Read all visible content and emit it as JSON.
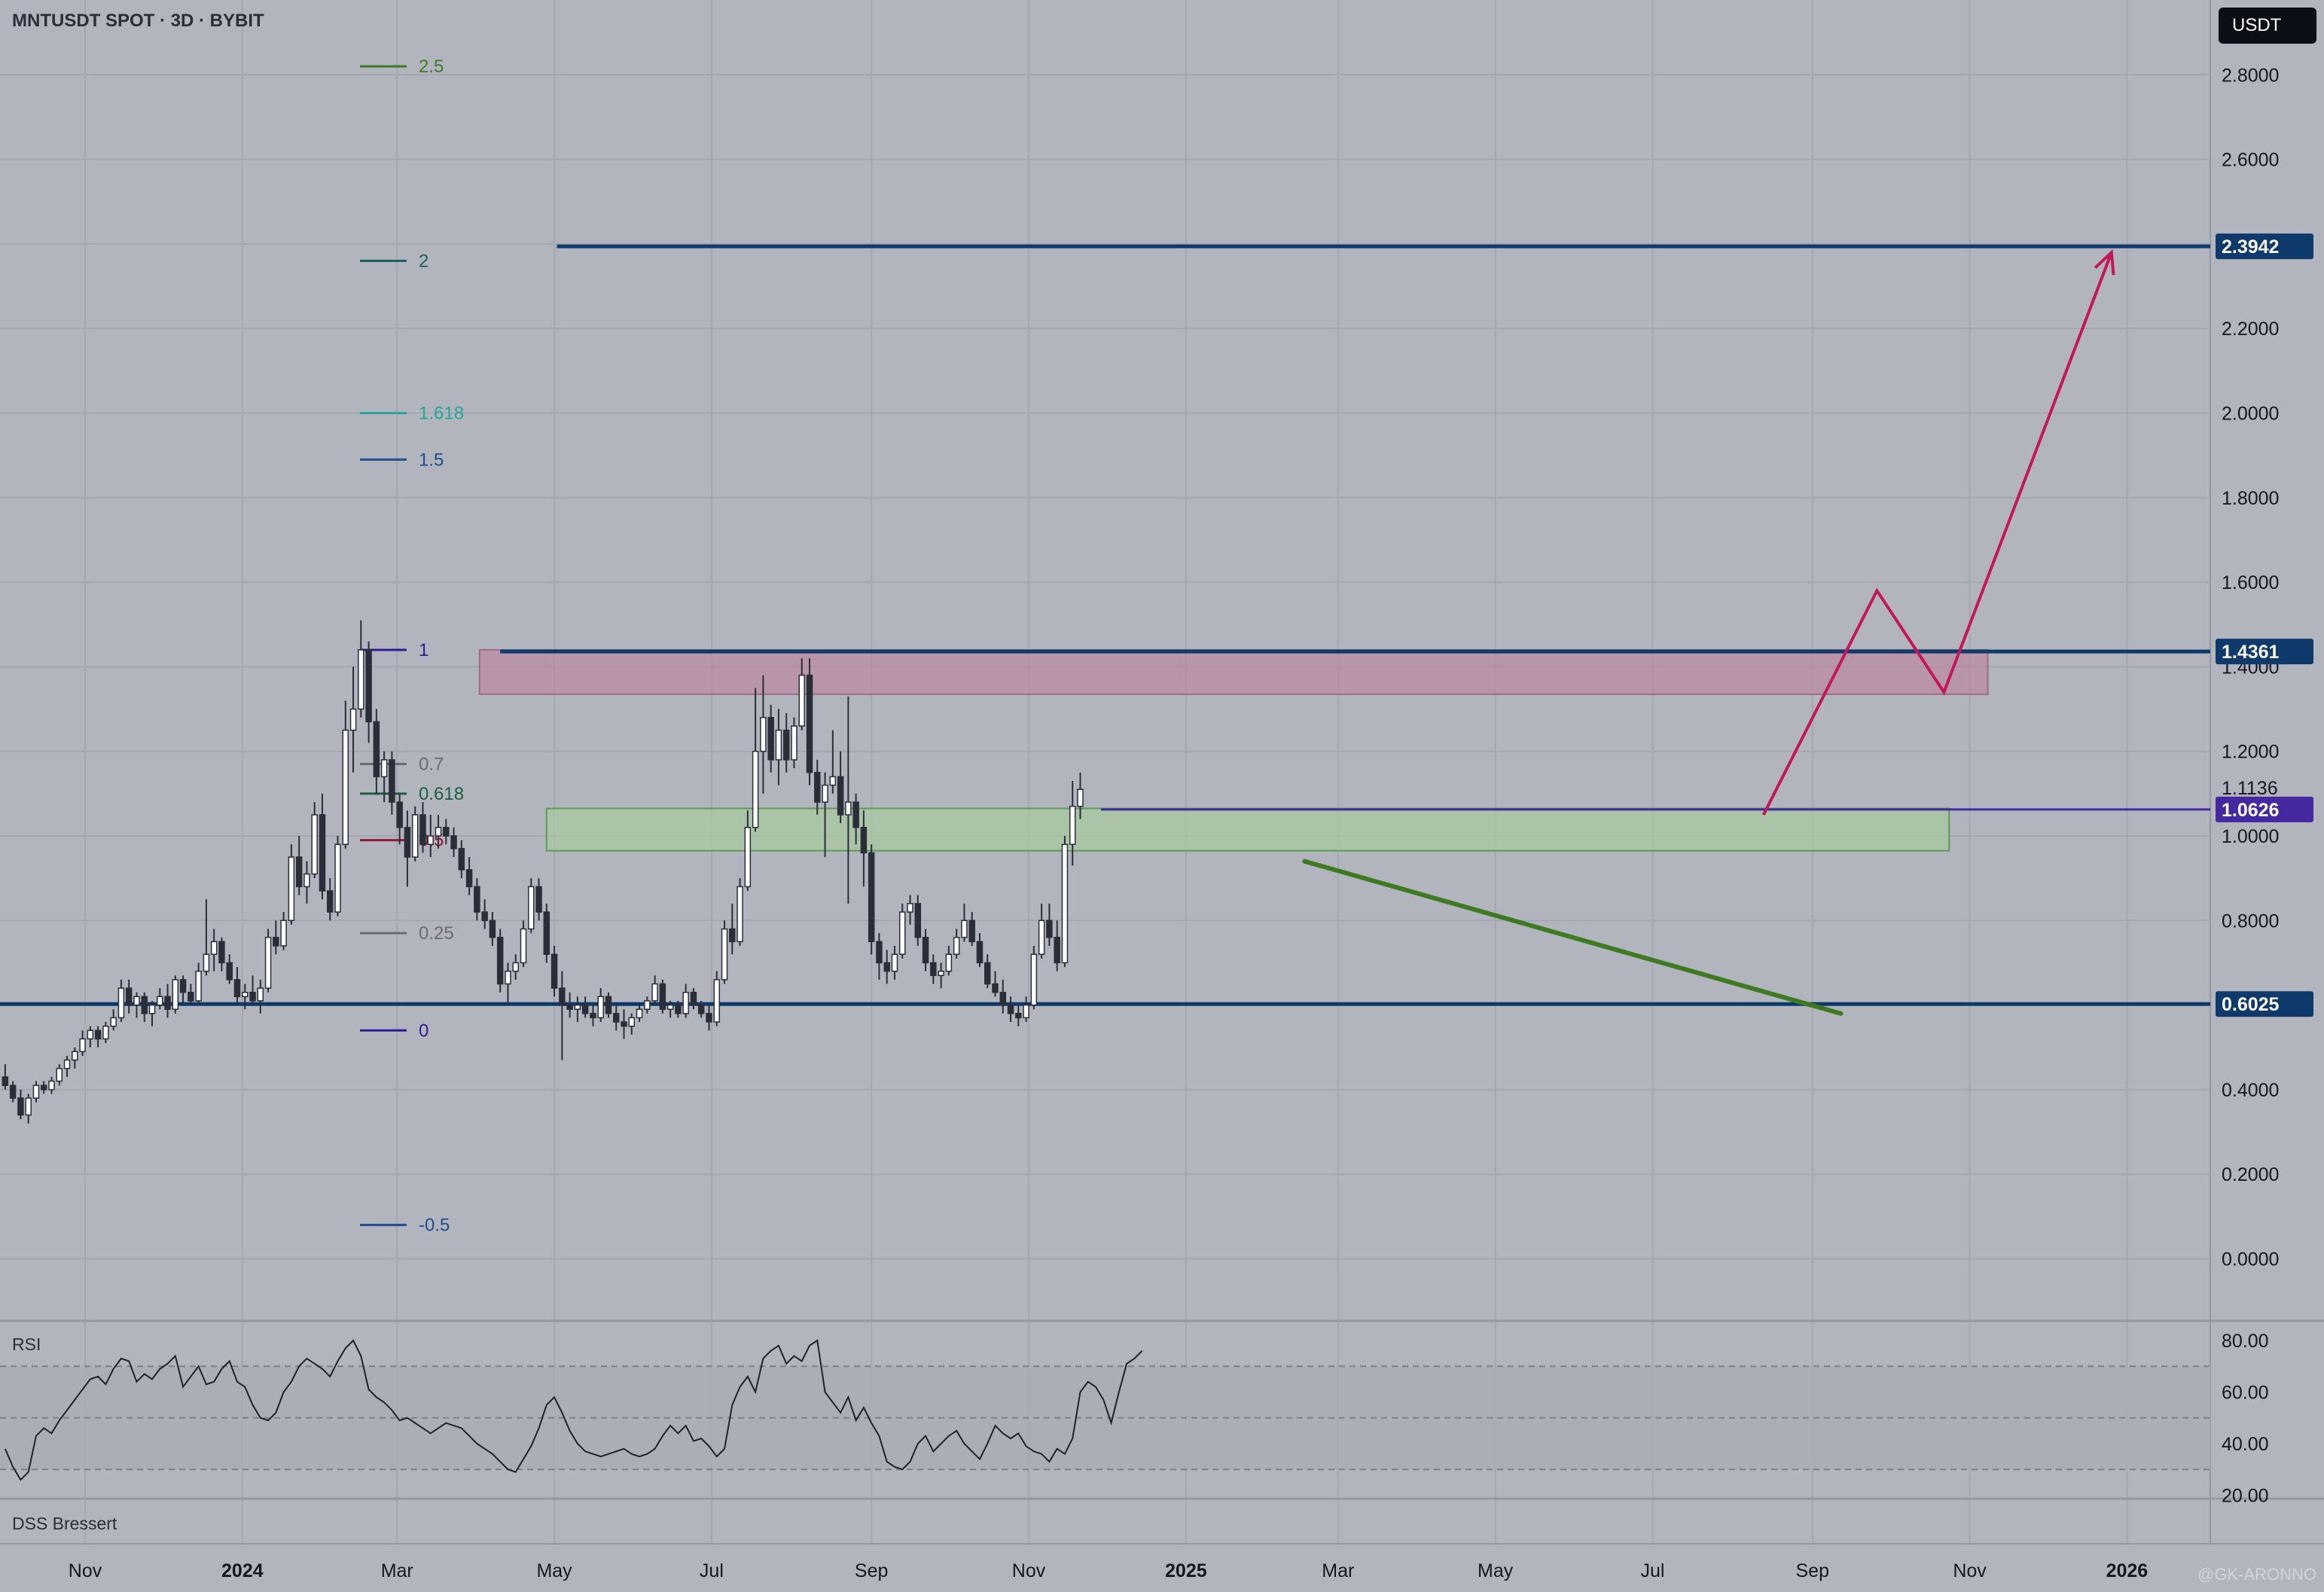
{
  "header": {
    "title": "MNTUSDT SPOT · 3D · BYBIT"
  },
  "currency_button": {
    "label": "USDT"
  },
  "rsi_pane": {
    "label": "RSI"
  },
  "dss_pane": {
    "label": "DSS Bressert"
  },
  "watermark": {
    "text": "@GK-ARONNO"
  },
  "colors": {
    "background": "#b2b5be",
    "grid": "#a3a7b1",
    "candle_up": "#ffffff",
    "candle_down": "#2a2e39",
    "horizontal_level": "#0d3a6b",
    "projection": "#c2185b",
    "trendline": "#3d7a22",
    "resistance_zone": "#b98ba2",
    "support_zone": "#a8c9a0",
    "rsi_line": "#1e222d",
    "mid_level": "#4527a0"
  },
  "chart_data": [
    {
      "type": "candlestick",
      "title": "MNTUSDT SPOT · 3D · BYBIT",
      "x_tick_labels": [
        "Nov",
        "2024",
        "Mar",
        "May",
        "Jul",
        "Sep",
        "Nov",
        "2025",
        "Mar",
        "May",
        "Jul",
        "Sep",
        "Nov",
        "2026"
      ],
      "y_tick_labels": [
        "2.8000",
        "2.6000",
        "2.4000",
        "2.2000",
        "2.0000",
        "1.8000",
        "1.6000",
        "1.4000",
        "1.2000",
        "1.0000",
        "0.8000",
        "0.6000",
        "0.4000",
        "0.2000",
        "0.0000"
      ],
      "ylim": [
        -0.14,
        2.94
      ],
      "grid": true,
      "price_labels": [
        {
          "value": 2.3942,
          "label": "2.3942",
          "color": "#0d3a6b"
        },
        {
          "value": 1.4361,
          "label": "1.4361",
          "color": "#0d3a6b"
        },
        {
          "value": 1.1136,
          "label": "1.1136",
          "color": "none"
        },
        {
          "value": 1.0626,
          "label": "1.0626",
          "color": "#4527a0"
        },
        {
          "value": 0.6025,
          "label": "0.6025",
          "color": "#0d3a6b"
        }
      ],
      "fib_levels": [
        {
          "level": "2.5",
          "price": 2.82,
          "color": "#3d7a22"
        },
        {
          "level": "2",
          "price": 2.36,
          "color": "#1b5e5e"
        },
        {
          "level": "1.618",
          "price": 2.0,
          "color": "#26a69a"
        },
        {
          "level": "1.5",
          "price": 1.89,
          "color": "#1e4f8c"
        },
        {
          "level": "1",
          "price": 1.44,
          "color": "#311b92"
        },
        {
          "level": "0.7",
          "price": 1.17,
          "color": "#6b6b75"
        },
        {
          "level": "0.618",
          "price": 1.1,
          "color": "#1b5e40"
        },
        {
          "level": "0.5",
          "price": 0.99,
          "color": "#8e1b3b"
        },
        {
          "level": "0.25",
          "price": 0.77,
          "color": "#6b6b75"
        },
        {
          "level": "0",
          "price": 0.54,
          "color": "#311b92"
        },
        {
          "level": "-0.5",
          "price": 0.08,
          "color": "#1e4f8c"
        }
      ],
      "zones": [
        {
          "name": "resistance",
          "from": "2024-04-02",
          "to": "2025-11-08",
          "low": 1.335,
          "high": 1.44
        },
        {
          "name": "support",
          "from": "2024-04-28",
          "to": "2025-10-24",
          "low": 0.965,
          "high": 1.065
        }
      ],
      "horizontal_lines": [
        {
          "price": 2.3942,
          "from": "2024-05-02"
        },
        {
          "price": 1.4361,
          "from": "2024-04-10"
        },
        {
          "price": 1.0626,
          "from": "2024-11-29"
        },
        {
          "price": 0.6025,
          "from": "2023-09-20"
        }
      ],
      "trendline": {
        "from": {
          "date": "2025-02-16",
          "price": 0.94
        },
        "to": {
          "date": "2025-09-12",
          "price": 0.58
        }
      },
      "projection_path": [
        {
          "date": "2025-08-13",
          "price": 1.05
        },
        {
          "date": "2025-09-26",
          "price": 1.58
        },
        {
          "date": "2025-10-22",
          "price": 1.34
        },
        {
          "date": "2025-12-26",
          "price": 2.38
        }
      ],
      "candles": [
        [
          0.43,
          0.46,
          0.4,
          0.41
        ],
        [
          0.41,
          0.42,
          0.37,
          0.38
        ],
        [
          0.38,
          0.4,
          0.33,
          0.34
        ],
        [
          0.34,
          0.39,
          0.32,
          0.38
        ],
        [
          0.38,
          0.42,
          0.37,
          0.41
        ],
        [
          0.41,
          0.42,
          0.39,
          0.4
        ],
        [
          0.4,
          0.43,
          0.39,
          0.42
        ],
        [
          0.42,
          0.46,
          0.41,
          0.45
        ],
        [
          0.45,
          0.48,
          0.43,
          0.47
        ],
        [
          0.47,
          0.5,
          0.45,
          0.49
        ],
        [
          0.49,
          0.54,
          0.48,
          0.52
        ],
        [
          0.52,
          0.55,
          0.5,
          0.54
        ],
        [
          0.54,
          0.55,
          0.5,
          0.52
        ],
        [
          0.52,
          0.56,
          0.51,
          0.55
        ],
        [
          0.55,
          0.59,
          0.54,
          0.57
        ],
        [
          0.57,
          0.66,
          0.56,
          0.64
        ],
        [
          0.64,
          0.66,
          0.58,
          0.6
        ],
        [
          0.6,
          0.63,
          0.57,
          0.62
        ],
        [
          0.62,
          0.63,
          0.56,
          0.58
        ],
        [
          0.58,
          0.61,
          0.55,
          0.6
        ],
        [
          0.6,
          0.64,
          0.59,
          0.62
        ],
        [
          0.62,
          0.65,
          0.57,
          0.59
        ],
        [
          0.59,
          0.67,
          0.58,
          0.66
        ],
        [
          0.66,
          0.67,
          0.6,
          0.63
        ],
        [
          0.63,
          0.65,
          0.6,
          0.61
        ],
        [
          0.61,
          0.7,
          0.6,
          0.68
        ],
        [
          0.68,
          0.85,
          0.67,
          0.72
        ],
        [
          0.72,
          0.78,
          0.68,
          0.75
        ],
        [
          0.75,
          0.76,
          0.68,
          0.7
        ],
        [
          0.7,
          0.72,
          0.65,
          0.66
        ],
        [
          0.66,
          0.69,
          0.6,
          0.62
        ],
        [
          0.62,
          0.65,
          0.59,
          0.63
        ],
        [
          0.63,
          0.67,
          0.6,
          0.61
        ],
        [
          0.61,
          0.66,
          0.58,
          0.64
        ],
        [
          0.64,
          0.78,
          0.63,
          0.76
        ],
        [
          0.76,
          0.8,
          0.72,
          0.74
        ],
        [
          0.74,
          0.82,
          0.73,
          0.8
        ],
        [
          0.8,
          0.98,
          0.79,
          0.95
        ],
        [
          0.95,
          1.0,
          0.86,
          0.88
        ],
        [
          0.88,
          0.94,
          0.84,
          0.91
        ],
        [
          0.91,
          1.08,
          0.9,
          1.05
        ],
        [
          1.05,
          1.1,
          0.85,
          0.87
        ],
        [
          0.87,
          0.9,
          0.8,
          0.82
        ],
        [
          0.82,
          1.0,
          0.81,
          0.98
        ],
        [
          0.98,
          1.32,
          0.97,
          1.25
        ],
        [
          1.25,
          1.4,
          1.15,
          1.3
        ],
        [
          1.3,
          1.51,
          1.28,
          1.44
        ],
        [
          1.44,
          1.46,
          1.22,
          1.27
        ],
        [
          1.27,
          1.3,
          1.1,
          1.14
        ],
        [
          1.14,
          1.2,
          1.08,
          1.18
        ],
        [
          1.18,
          1.2,
          1.05,
          1.08
        ],
        [
          1.08,
          1.1,
          0.98,
          1.02
        ],
        [
          1.02,
          1.06,
          0.88,
          0.95
        ],
        [
          0.95,
          1.07,
          0.94,
          1.05
        ],
        [
          1.05,
          1.08,
          0.96,
          0.98
        ],
        [
          0.98,
          1.05,
          0.95,
          1.0
        ],
        [
          1.0,
          1.05,
          0.97,
          1.02
        ],
        [
          1.02,
          1.04,
          0.98,
          1.0
        ],
        [
          1.0,
          1.02,
          0.95,
          0.97
        ],
        [
          0.97,
          0.99,
          0.9,
          0.92
        ],
        [
          0.92,
          0.95,
          0.86,
          0.88
        ],
        [
          0.88,
          0.9,
          0.8,
          0.82
        ],
        [
          0.82,
          0.85,
          0.78,
          0.8
        ],
        [
          0.8,
          0.82,
          0.74,
          0.76
        ],
        [
          0.76,
          0.78,
          0.63,
          0.65
        ],
        [
          0.65,
          0.7,
          0.6,
          0.68
        ],
        [
          0.68,
          0.72,
          0.66,
          0.7
        ],
        [
          0.7,
          0.8,
          0.69,
          0.78
        ],
        [
          0.78,
          0.9,
          0.77,
          0.88
        ],
        [
          0.88,
          0.9,
          0.8,
          0.82
        ],
        [
          0.82,
          0.84,
          0.7,
          0.72
        ],
        [
          0.72,
          0.74,
          0.62,
          0.64
        ],
        [
          0.64,
          0.68,
          0.47,
          0.6
        ],
        [
          0.6,
          0.63,
          0.57,
          0.59
        ],
        [
          0.59,
          0.62,
          0.56,
          0.6
        ],
        [
          0.6,
          0.62,
          0.57,
          0.58
        ],
        [
          0.58,
          0.6,
          0.55,
          0.57
        ],
        [
          0.57,
          0.64,
          0.56,
          0.62
        ],
        [
          0.62,
          0.63,
          0.57,
          0.58
        ],
        [
          0.58,
          0.6,
          0.54,
          0.56
        ],
        [
          0.56,
          0.59,
          0.52,
          0.55
        ],
        [
          0.55,
          0.58,
          0.53,
          0.57
        ],
        [
          0.57,
          0.6,
          0.56,
          0.59
        ],
        [
          0.59,
          0.62,
          0.58,
          0.61
        ],
        [
          0.61,
          0.67,
          0.6,
          0.65
        ],
        [
          0.65,
          0.66,
          0.58,
          0.59
        ],
        [
          0.59,
          0.61,
          0.57,
          0.6
        ],
        [
          0.6,
          0.61,
          0.57,
          0.58
        ],
        [
          0.58,
          0.65,
          0.57,
          0.63
        ],
        [
          0.63,
          0.64,
          0.59,
          0.6
        ],
        [
          0.6,
          0.61,
          0.57,
          0.58
        ],
        [
          0.58,
          0.6,
          0.54,
          0.56
        ],
        [
          0.56,
          0.68,
          0.55,
          0.66
        ],
        [
          0.66,
          0.8,
          0.65,
          0.78
        ],
        [
          0.78,
          0.84,
          0.72,
          0.75
        ],
        [
          0.75,
          0.9,
          0.74,
          0.88
        ],
        [
          0.88,
          1.06,
          0.87,
          1.02
        ],
        [
          1.02,
          1.35,
          1.01,
          1.2
        ],
        [
          1.2,
          1.38,
          1.1,
          1.28
        ],
        [
          1.28,
          1.31,
          1.15,
          1.18
        ],
        [
          1.18,
          1.3,
          1.12,
          1.25
        ],
        [
          1.25,
          1.29,
          1.15,
          1.18
        ],
        [
          1.18,
          1.28,
          1.16,
          1.26
        ],
        [
          1.26,
          1.42,
          1.25,
          1.38
        ],
        [
          1.38,
          1.42,
          1.12,
          1.15
        ],
        [
          1.15,
          1.18,
          1.05,
          1.08
        ],
        [
          1.08,
          1.15,
          0.95,
          1.12
        ],
        [
          1.12,
          1.25,
          1.1,
          1.14
        ],
        [
          1.14,
          1.2,
          1.03,
          1.05
        ],
        [
          1.05,
          1.33,
          0.84,
          1.08
        ],
        [
          1.08,
          1.1,
          0.98,
          1.02
        ],
        [
          1.02,
          1.06,
          0.88,
          0.96
        ],
        [
          0.96,
          0.98,
          0.72,
          0.75
        ],
        [
          0.75,
          0.77,
          0.66,
          0.7
        ],
        [
          0.7,
          0.73,
          0.65,
          0.68
        ],
        [
          0.68,
          0.74,
          0.66,
          0.72
        ],
        [
          0.72,
          0.84,
          0.71,
          0.82
        ],
        [
          0.82,
          0.86,
          0.79,
          0.84
        ],
        [
          0.84,
          0.86,
          0.74,
          0.76
        ],
        [
          0.76,
          0.78,
          0.68,
          0.7
        ],
        [
          0.7,
          0.72,
          0.65,
          0.67
        ],
        [
          0.67,
          0.7,
          0.64,
          0.68
        ],
        [
          0.68,
          0.74,
          0.67,
          0.72
        ],
        [
          0.72,
          0.78,
          0.71,
          0.76
        ],
        [
          0.76,
          0.84,
          0.75,
          0.8
        ],
        [
          0.8,
          0.82,
          0.74,
          0.75
        ],
        [
          0.75,
          0.77,
          0.69,
          0.7
        ],
        [
          0.7,
          0.72,
          0.64,
          0.65
        ],
        [
          0.65,
          0.68,
          0.62,
          0.63
        ],
        [
          0.63,
          0.66,
          0.58,
          0.6
        ],
        [
          0.6,
          0.62,
          0.56,
          0.58
        ],
        [
          0.58,
          0.6,
          0.55,
          0.57
        ],
        [
          0.57,
          0.62,
          0.56,
          0.6
        ],
        [
          0.6,
          0.74,
          0.59,
          0.72
        ],
        [
          0.72,
          0.84,
          0.71,
          0.8
        ],
        [
          0.8,
          0.84,
          0.74,
          0.76
        ],
        [
          0.76,
          0.8,
          0.68,
          0.7
        ],
        [
          0.7,
          1.0,
          0.69,
          0.98
        ],
        [
          0.98,
          1.13,
          0.93,
          1.07
        ],
        [
          1.07,
          1.15,
          1.04,
          1.11
        ]
      ],
      "candles_note": "",
      "candle_dates": {
        "first": "2023-10-01",
        "step_days": 3
      }
    },
    {
      "type": "line",
      "title": "RSI",
      "y_tick_labels": [
        "80.00",
        "60.00",
        "40.00",
        "20.00"
      ],
      "ylim": [
        18,
        84
      ],
      "band": [
        30,
        70
      ],
      "values": [
        38,
        31,
        26,
        29,
        43,
        46,
        44,
        49,
        53,
        57,
        61,
        65,
        66,
        63,
        69,
        73,
        72,
        64,
        67,
        65,
        69,
        71,
        74,
        62,
        66,
        70,
        63,
        64,
        69,
        72,
        64,
        62,
        55,
        50,
        49,
        52,
        60,
        64,
        70,
        73,
        71,
        69,
        66,
        72,
        77,
        80,
        74,
        61,
        58,
        56,
        53,
        49,
        50,
        48,
        46,
        44,
        46,
        48,
        47,
        46,
        43,
        40,
        38,
        36,
        33,
        30,
        29,
        34,
        39,
        46,
        55,
        58,
        52,
        45,
        40,
        37,
        36,
        35,
        36,
        37,
        38,
        36,
        35,
        36,
        38,
        43,
        47,
        44,
        47,
        41,
        42,
        39,
        35,
        38,
        55,
        62,
        66,
        60,
        73,
        76,
        78,
        71,
        74,
        72,
        78,
        80,
        60,
        56,
        52,
        58,
        49,
        54,
        48,
        43,
        33,
        31,
        30,
        33,
        40,
        43,
        37,
        40,
        43,
        45,
        40,
        37,
        34,
        40,
        47,
        44,
        42,
        44,
        39,
        37,
        36,
        33,
        38,
        36,
        42,
        60,
        64,
        62,
        57,
        48,
        60,
        71,
        73,
        76
      ]
    }
  ]
}
